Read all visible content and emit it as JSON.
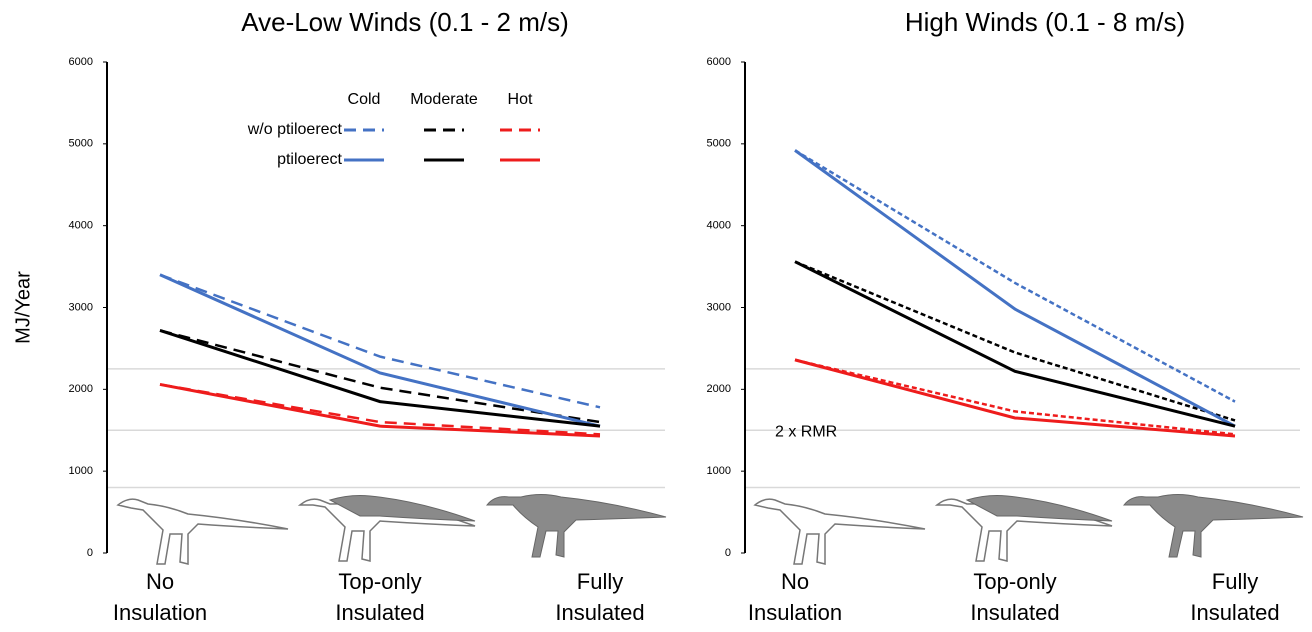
{
  "chart_data": [
    {
      "type": "line",
      "title": "Ave-Low Winds (0.1 - 2 m/s)",
      "y_label": "MJ/Year",
      "categories": [
        [
          "No",
          "Insulation"
        ],
        [
          "Top-only",
          "Insulated"
        ],
        [
          "Fully",
          "Insulated"
        ]
      ],
      "ylim": [
        0,
        6000
      ],
      "yticks": [
        0,
        1000,
        2000,
        3000,
        4000,
        5000,
        6000
      ],
      "hlines": [
        2250,
        1500,
        800
      ],
      "hline_color": "#d9d9d9",
      "legend": {
        "columns": [
          "Cold",
          "Moderate",
          "Hot"
        ],
        "rows": [
          "w/o ptiloerect",
          "ptiloerect"
        ]
      },
      "series": [
        {
          "color": "#4472c4",
          "line_style": "dashed",
          "values": [
            3400,
            2400,
            1780
          ]
        },
        {
          "color": "#000000",
          "line_style": "dashed",
          "values": [
            2720,
            2020,
            1600
          ]
        },
        {
          "color": "#ee1c1c",
          "line_style": "dashed",
          "values": [
            2060,
            1600,
            1450
          ]
        },
        {
          "color": "#4472c4",
          "line_style": "solid",
          "values": [
            3400,
            2200,
            1550
          ]
        },
        {
          "color": "#000000",
          "line_style": "solid",
          "values": [
            2720,
            1850,
            1550
          ]
        },
        {
          "color": "#ee1c1c",
          "line_style": "solid",
          "values": [
            2060,
            1550,
            1430
          ]
        }
      ]
    },
    {
      "type": "line",
      "title": "High Winds (0.1 - 8 m/s)",
      "categories": [
        [
          "No",
          "Insulation"
        ],
        [
          "Top-only",
          "Insulated"
        ],
        [
          "Fully",
          "Insulated"
        ]
      ],
      "ylim": [
        0,
        6000
      ],
      "yticks": [
        0,
        1000,
        2000,
        3000,
        4000,
        5000,
        6000
      ],
      "hlines": [
        2250,
        1500,
        800
      ],
      "hline_color": "#d9d9d9",
      "annotations": [
        {
          "text": "2 x RMR",
          "y": 1500
        }
      ],
      "series": [
        {
          "color": "#4472c4",
          "line_style": "dotted",
          "values": [
            4920,
            3300,
            1850
          ]
        },
        {
          "color": "#000000",
          "line_style": "dotted",
          "values": [
            3560,
            2450,
            1620
          ]
        },
        {
          "color": "#ee1c1c",
          "line_style": "dotted",
          "values": [
            2360,
            1730,
            1450
          ]
        },
        {
          "color": "#4472c4",
          "line_style": "solid",
          "values": [
            4920,
            2980,
            1550
          ]
        },
        {
          "color": "#000000",
          "line_style": "solid",
          "values": [
            3560,
            2220,
            1550
          ]
        },
        {
          "color": "#ee1c1c",
          "line_style": "solid",
          "values": [
            2360,
            1650,
            1430
          ]
        }
      ]
    }
  ]
}
